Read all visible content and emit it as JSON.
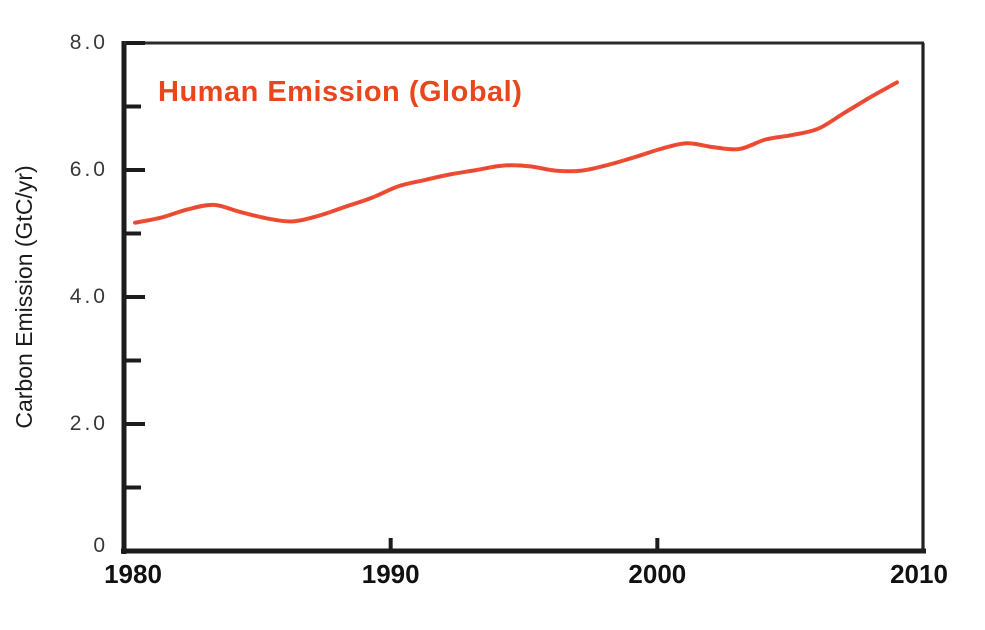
{
  "chart_data": {
    "type": "line",
    "title": "Human Emission (Global)",
    "title_color": "#e8471c",
    "xlabel": "",
    "ylabel": "Carbon Emission (GtC/yr)",
    "xlim": [
      1980,
      2010
    ],
    "ylim": [
      0,
      8.0
    ],
    "grid": false,
    "legend": "none",
    "axis_color": "#1c1c1c",
    "x_ticks": [
      {
        "value": 1980,
        "label": "1980",
        "tick": false
      },
      {
        "value": 1990,
        "label": "1990",
        "tick": true
      },
      {
        "value": 2000,
        "label": "2000",
        "tick": true
      },
      {
        "value": 2010,
        "label": "2010",
        "tick": false
      }
    ],
    "y_ticks": [
      {
        "value": 0,
        "label": "0"
      },
      {
        "value": 1.0,
        "label": ""
      },
      {
        "value": 2.0,
        "label": "2.0"
      },
      {
        "value": 3.0,
        "label": ""
      },
      {
        "value": 4.0,
        "label": "4.0"
      },
      {
        "value": 5.0,
        "label": ""
      },
      {
        "value": 6.0,
        "label": "6.0"
      },
      {
        "value": 7.0,
        "label": ""
      },
      {
        "value": 8.0,
        "label": "8.0"
      }
    ],
    "series": [
      {
        "name": "Human Emission (Global)",
        "color": "#ef4f2d",
        "overlay_color": "#d83a5e",
        "x": [
          1980,
          1981,
          1982,
          1983,
          1984,
          1985,
          1986,
          1987,
          1988,
          1989,
          1990,
          1991,
          1992,
          1993,
          1994,
          1995,
          1996,
          1997,
          1998,
          1999,
          2000,
          2001,
          2002,
          2003,
          2004,
          2005,
          2006,
          2007,
          2008,
          2009
        ],
        "values": [
          5.17,
          5.25,
          5.38,
          5.45,
          5.34,
          5.24,
          5.19,
          5.28,
          5.42,
          5.56,
          5.74,
          5.84,
          5.93,
          6.0,
          6.07,
          6.06,
          5.99,
          5.99,
          6.08,
          6.2,
          6.33,
          6.42,
          6.36,
          6.33,
          6.48,
          6.55,
          6.65,
          6.9,
          7.15,
          7.38
        ]
      }
    ]
  }
}
